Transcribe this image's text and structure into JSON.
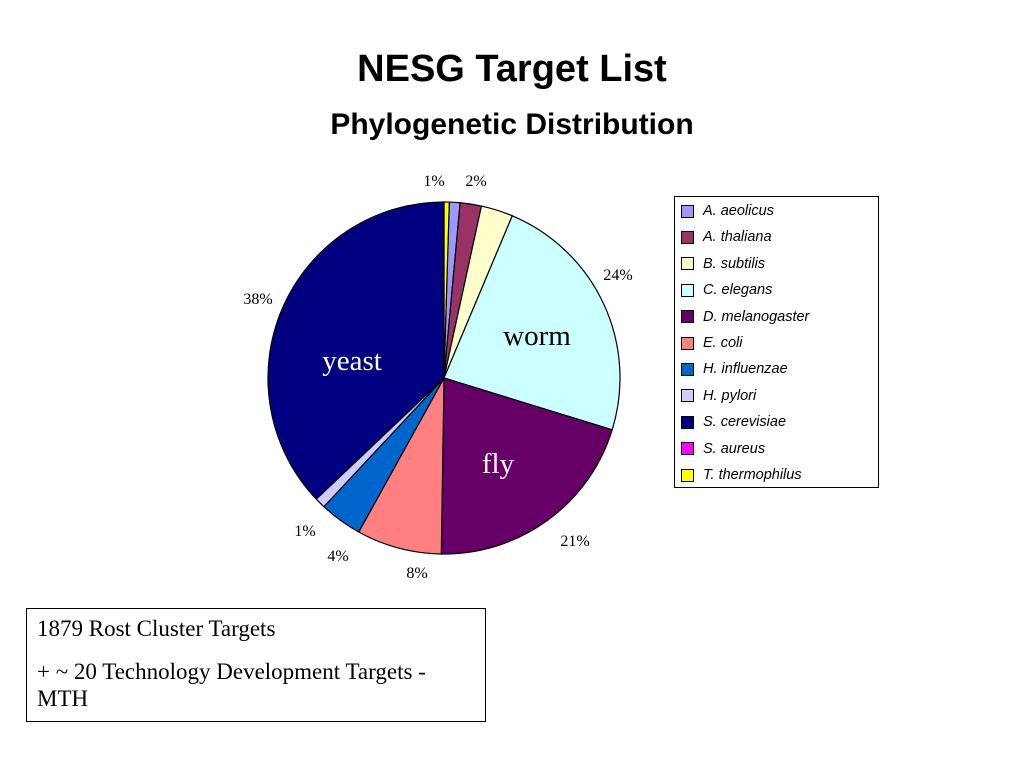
{
  "header": {
    "title": "NESG Target List",
    "subtitle": "Phylogenetic Distribution"
  },
  "chart_data": {
    "type": "pie",
    "slices": [
      {
        "name": "T. thermophilus",
        "value": 0.5,
        "color": "#ffff00"
      },
      {
        "name": "A. aeolicus",
        "value": 1,
        "color": "#9999ff",
        "label": "1%"
      },
      {
        "name": "A. thaliana",
        "value": 2,
        "color": "#993366",
        "label": "2%"
      },
      {
        "name": "B. subtilis",
        "value": 3,
        "color": "#ffffcc"
      },
      {
        "name": "C. elegans",
        "value": 24,
        "color": "#ccffff",
        "label": "24%",
        "inside_label": "worm"
      },
      {
        "name": "D. melanogaster",
        "value": 21,
        "color": "#660066",
        "label": "21%",
        "inside_label": "fly"
      },
      {
        "name": "E. coli",
        "value": 8,
        "color": "#ff8080",
        "label": "8%"
      },
      {
        "name": "H. influenzae",
        "value": 4,
        "color": "#0066cc",
        "label": "4%"
      },
      {
        "name": "H. pylori",
        "value": 1,
        "color": "#ccccff",
        "label": "1%"
      },
      {
        "name": "S. cerevisiae",
        "value": 38,
        "color": "#000080",
        "label": "38%",
        "inside_label": "yeast"
      },
      {
        "name": "S. aureus",
        "value": 0,
        "color": "#ff00ff"
      }
    ],
    "legend": [
      {
        "name": "A. aeolicus",
        "color": "#9999ff"
      },
      {
        "name": "A. thaliana",
        "color": "#993366"
      },
      {
        "name": "B. subtilis",
        "color": "#ffffcc"
      },
      {
        "name": "C. elegans",
        "color": "#ccffff"
      },
      {
        "name": "D. melanogaster",
        "color": "#660066"
      },
      {
        "name": "E. coli",
        "color": "#ff8080"
      },
      {
        "name": "H. influenzae",
        "color": "#0066cc"
      },
      {
        "name": "H. pylori",
        "color": "#ccccff"
      },
      {
        "name": "S. cerevisiae",
        "color": "#000080"
      },
      {
        "name": "S. aureus",
        "color": "#ff00ff"
      },
      {
        "name": "T. thermophilus",
        "color": "#ffff00"
      }
    ],
    "legend_position": "right"
  },
  "info_box": {
    "line1": "1879 Rost Cluster Targets",
    "line2": "+  ~ 20 Technology Development Targets - MTH"
  }
}
